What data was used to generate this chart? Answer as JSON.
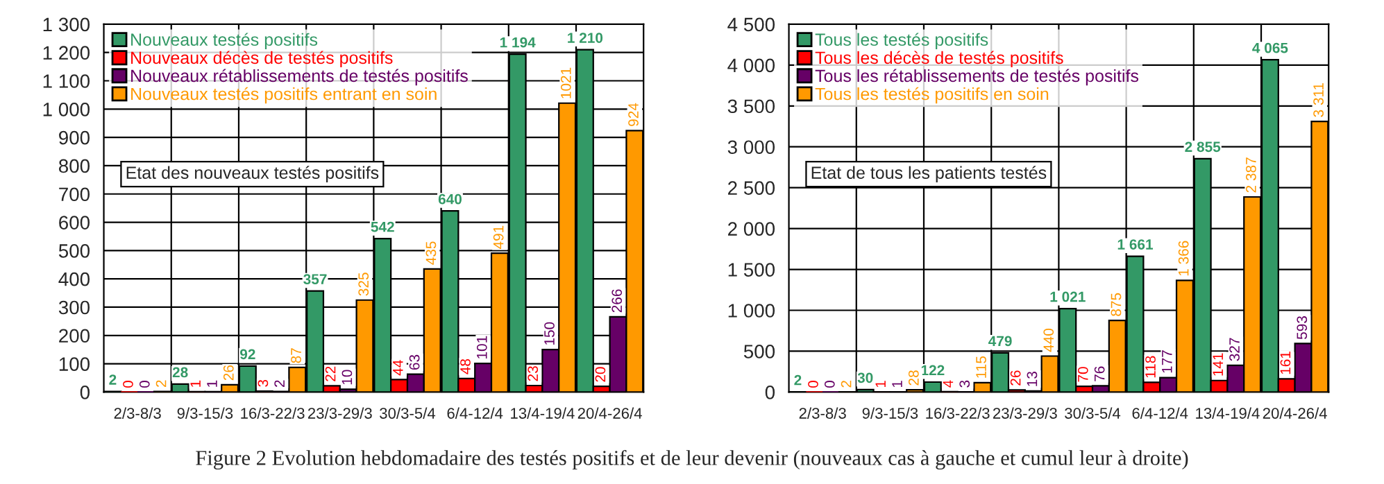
{
  "chart_data": [
    {
      "type": "bar",
      "categories": [
        "2/3-8/3",
        "9/3-15/3",
        "16/3-22/3",
        "23/3-29/3",
        "30/3-5/4",
        "6/4-12/4",
        "13/4-19/4",
        "20/4-26/4"
      ],
      "series": [
        {
          "name": "Nouveaux testés positifs",
          "color": "#339966",
          "values": [
            2,
            28,
            92,
            357,
            542,
            640,
            1194,
            1210
          ],
          "value_labels": [
            "2",
            "28",
            "92",
            "357",
            "542",
            "640",
            "1 194",
            "1 210"
          ]
        },
        {
          "name": "Nouveaux décès de testés positifs",
          "color": "#ff0000",
          "values": [
            0,
            1,
            3,
            22,
            44,
            48,
            23,
            20
          ],
          "value_labels": [
            "0",
            "1",
            "3",
            "22",
            "44",
            "48",
            "23",
            "20"
          ]
        },
        {
          "name": "Nouveaux rétablissements de testés positifs",
          "color": "#660066",
          "values": [
            0,
            1,
            2,
            10,
            63,
            101,
            150,
            266
          ],
          "value_labels": [
            "0",
            "1",
            "2",
            "10",
            "63",
            "101",
            "150",
            "266"
          ]
        },
        {
          "name": "Nouveaux testés positifs entrant en soin",
          "color": "#ff9900",
          "values": [
            2,
            26,
            87,
            325,
            435,
            491,
            1021,
            924
          ],
          "value_labels": [
            "2",
            "26",
            "87",
            "325",
            "435",
            "491",
            "1021",
            "924"
          ]
        }
      ],
      "ylim": [
        0,
        1300
      ],
      "yticks": [
        0,
        100,
        200,
        300,
        400,
        500,
        600,
        700,
        800,
        900,
        {
          "value": 1000,
          "label": "1 000"
        },
        {
          "value": 1100,
          "label": "1 100"
        },
        {
          "value": 1200,
          "label": "1 200"
        },
        {
          "value": 1300,
          "label": "1 300"
        }
      ],
      "grid": true,
      "legend": "top left",
      "annotations": [
        "Etat des nouveaux testés positifs",
        "Figure 2 Evolution hebdomadaire des testés positifs et de leur devenir (nouveaux cas à gauche et cumul leur à droite)"
      ]
    },
    {
      "type": "bar",
      "categories": [
        "2/3-8/3",
        "9/3-15/3",
        "16/3-22/3",
        "23/3-29/3",
        "30/3-5/4",
        "6/4-12/4",
        "13/4-19/4",
        "20/4-26/4"
      ],
      "series": [
        {
          "name": "Tous les testés positifs",
          "color": "#339966",
          "values": [
            2,
            30,
            122,
            479,
            1021,
            1661,
            2855,
            4065
          ],
          "value_labels": [
            "2",
            "30",
            "122",
            "479",
            "1 021",
            "1 661",
            "2 855",
            "4 065"
          ]
        },
        {
          "name": "Tous les décès de testés positifs",
          "color": "#ff0000",
          "values": [
            0,
            1,
            4,
            26,
            70,
            118,
            141,
            161
          ],
          "value_labels": [
            "0",
            "1",
            "4",
            "26",
            "70",
            "118",
            "141",
            "161"
          ]
        },
        {
          "name": "Tous les rétablissements de testés positifs",
          "color": "#660066",
          "values": [
            0,
            1,
            3,
            13,
            76,
            177,
            327,
            593
          ],
          "value_labels": [
            "0",
            "1",
            "3",
            "13",
            "76",
            "177",
            "327",
            "593"
          ]
        },
        {
          "name": "Tous les testés positifs en soin",
          "color": "#ff9900",
          "values": [
            2,
            28,
            115,
            440,
            875,
            1366,
            2387,
            3311
          ],
          "value_labels": [
            "2",
            "28",
            "115",
            "440",
            "875",
            "1 366",
            "2 387",
            "3 311"
          ]
        }
      ],
      "ylim": [
        0,
        4500
      ],
      "yticks": [
        0,
        500,
        {
          "value": 1000,
          "label": "1 000"
        },
        {
          "value": 1500,
          "label": "1 500"
        },
        {
          "value": 2000,
          "label": "2 000"
        },
        {
          "value": 2500,
          "label": "2 500"
        },
        {
          "value": 3000,
          "label": "3 000"
        },
        {
          "value": 3500,
          "label": "3 500"
        },
        {
          "value": 4000,
          "label": "4 000"
        },
        {
          "value": 4500,
          "label": "4 500"
        }
      ],
      "grid": true,
      "legend": "top left",
      "annotations": [
        "Etat de tous les patients testés"
      ]
    }
  ]
}
